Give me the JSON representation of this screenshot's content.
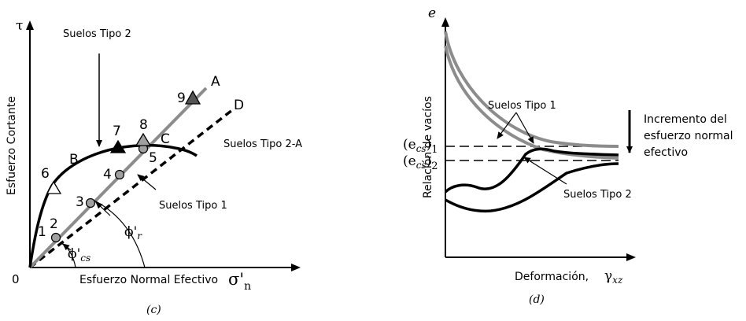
{
  "panel_c": {
    "caption": "(c)",
    "y_axis_symbol": "τ",
    "y_axis_label": "Esfuerzo Cortante",
    "origin": "0",
    "x_axis_label": "Esfuerzo Normal Efectivo",
    "x_axis_symbol": "σ'",
    "x_axis_sub": "n",
    "label_suelos_tipo_2": "Suelos Tipo 2",
    "label_suelos_tipo_2a": "Suelos Tipo 2-A",
    "label_suelos_tipo_1": "Suelos Tipo 1",
    "line_a": "A",
    "line_d": "D",
    "curve_b": "B",
    "curve_c": "C",
    "angle_r": "ϕ'",
    "angle_r_sub": "r",
    "angle_cs": "ϕ'",
    "angle_cs_sub": "cs",
    "points": [
      "1",
      "2",
      "3",
      "4",
      "5",
      "6",
      "7",
      "8",
      "9"
    ]
  },
  "panel_d": {
    "caption": "(d)",
    "y_axis_symbol": "e",
    "y_axis_label": "Relación de vacíos",
    "x_axis_label": "Deformación,",
    "x_axis_symbol": "γ",
    "x_axis_sub": "xz",
    "ecs1": "(e",
    "ecs1_sub": "cs",
    "ecs1_close": ")",
    "ecs1_idx": "1",
    "ecs2": "(e",
    "ecs2_sub": "cs",
    "ecs2_close": ")",
    "ecs2_idx": "2",
    "label_suelos_tipo_1": "Suelos Tipo 1",
    "label_suelos_tipo_2": "Suelos Tipo 2",
    "incremento_lines": [
      "Incremento del",
      "esfuerzo normal",
      "efectivo"
    ]
  }
}
